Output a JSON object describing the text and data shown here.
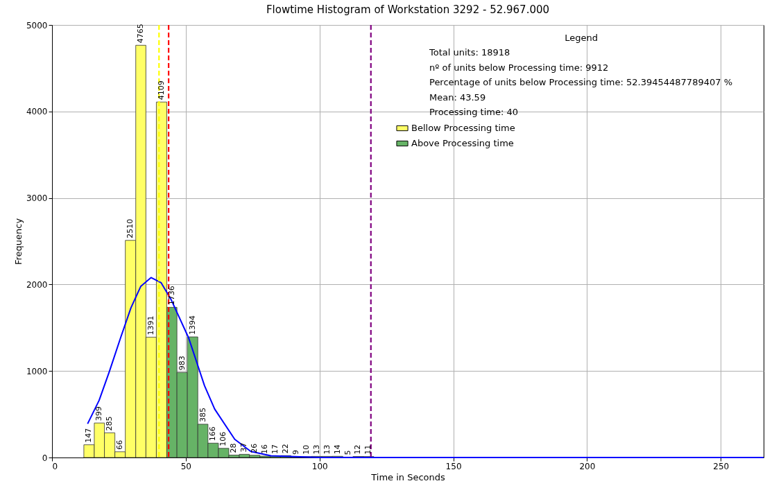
{
  "chart_data": {
    "type": "histogram",
    "title": "Flowtime Histogram of Workstation 3292 - 52.967.000",
    "xlabel": "Time in Seconds",
    "ylabel": "Frequency",
    "legend_title": "Legend",
    "annotations": [
      "Total units: 18918",
      "nº of units below Processing time: 9912",
      "Percentage of units below Processing time: 52.39454487789407 %",
      "Mean: 43.59",
      "Processing time: 40"
    ],
    "bins": [
      11.9,
      15.8,
      19.6,
      23.5,
      27.4,
      31.3,
      35.1,
      39.0,
      42.9,
      46.7,
      50.6,
      54.5,
      58.3,
      62.2,
      66.1,
      70.0,
      73.8,
      77.7,
      81.6,
      85.4,
      89.3,
      93.2,
      97.0,
      100.9,
      104.8,
      108.7,
      112.5,
      116.4,
      120.3
    ],
    "series": [
      {
        "name": "Bellow Processing time",
        "color": "#ffff66",
        "values": [
          147,
          399,
          285,
          66,
          2510,
          4765,
          1391,
          4109,
          null,
          null,
          null,
          null,
          null,
          null,
          null,
          null,
          null,
          null,
          null,
          null,
          null,
          null,
          null,
          null,
          null,
          null,
          null,
          null
        ],
        "value_labels": [
          "147",
          "399",
          "285",
          "66",
          "2510",
          "4765",
          "1391",
          "4109",
          null,
          null,
          null,
          null,
          null,
          null,
          null,
          null,
          null,
          null,
          null,
          null,
          null,
          null,
          null,
          null,
          null,
          null,
          null,
          null
        ]
      },
      {
        "name": "Above Processing time",
        "color": "#66b366",
        "values": [
          null,
          null,
          null,
          null,
          null,
          null,
          null,
          null,
          1736,
          983,
          1394,
          385,
          166,
          106,
          28,
          37,
          26,
          16,
          17,
          22,
          9,
          10,
          13,
          13,
          14,
          5,
          12,
          11
        ],
        "value_labels": [
          null,
          null,
          null,
          null,
          null,
          null,
          null,
          null,
          "1736",
          "983",
          "1394",
          "385",
          "166",
          "106",
          "28",
          "37",
          "26",
          "16",
          "17",
          "22",
          "9",
          "10",
          "13",
          "13",
          "14",
          "5",
          "12",
          "11"
        ]
      },
      {
        "type": "line",
        "color": "#0000ff",
        "x": [
          13.3,
          17.6,
          21.4,
          25.7,
          29.5,
          33.2,
          37.0,
          40.8,
          44.6,
          51.1,
          57.0,
          60.8,
          68.3,
          74.3,
          81.8,
          100,
          150,
          266
        ],
        "values": [
          390,
          660,
          990,
          1390,
          1730,
          1980,
          2080,
          2020,
          1820,
          1380,
          830,
          560,
          210,
          70,
          20,
          0,
          0,
          0
        ]
      }
    ],
    "ref_lines": [
      {
        "axis": "x",
        "value": 40,
        "color": "#ffff00",
        "line_style": "dashed"
      },
      {
        "axis": "x",
        "value": 43.59,
        "color": "#ff0000",
        "line_style": "dashed"
      },
      {
        "axis": "x",
        "value": 119.2,
        "color": "#800080",
        "line_style": "dashed"
      }
    ],
    "xlim": [
      0,
      266
    ],
    "xticks": [
      0,
      50,
      100,
      150,
      200,
      250
    ],
    "ylim": [
      0,
      5000
    ],
    "yticks": [
      0,
      1000,
      2000,
      3000,
      4000,
      5000
    ],
    "grid": true,
    "legend": "top right"
  }
}
